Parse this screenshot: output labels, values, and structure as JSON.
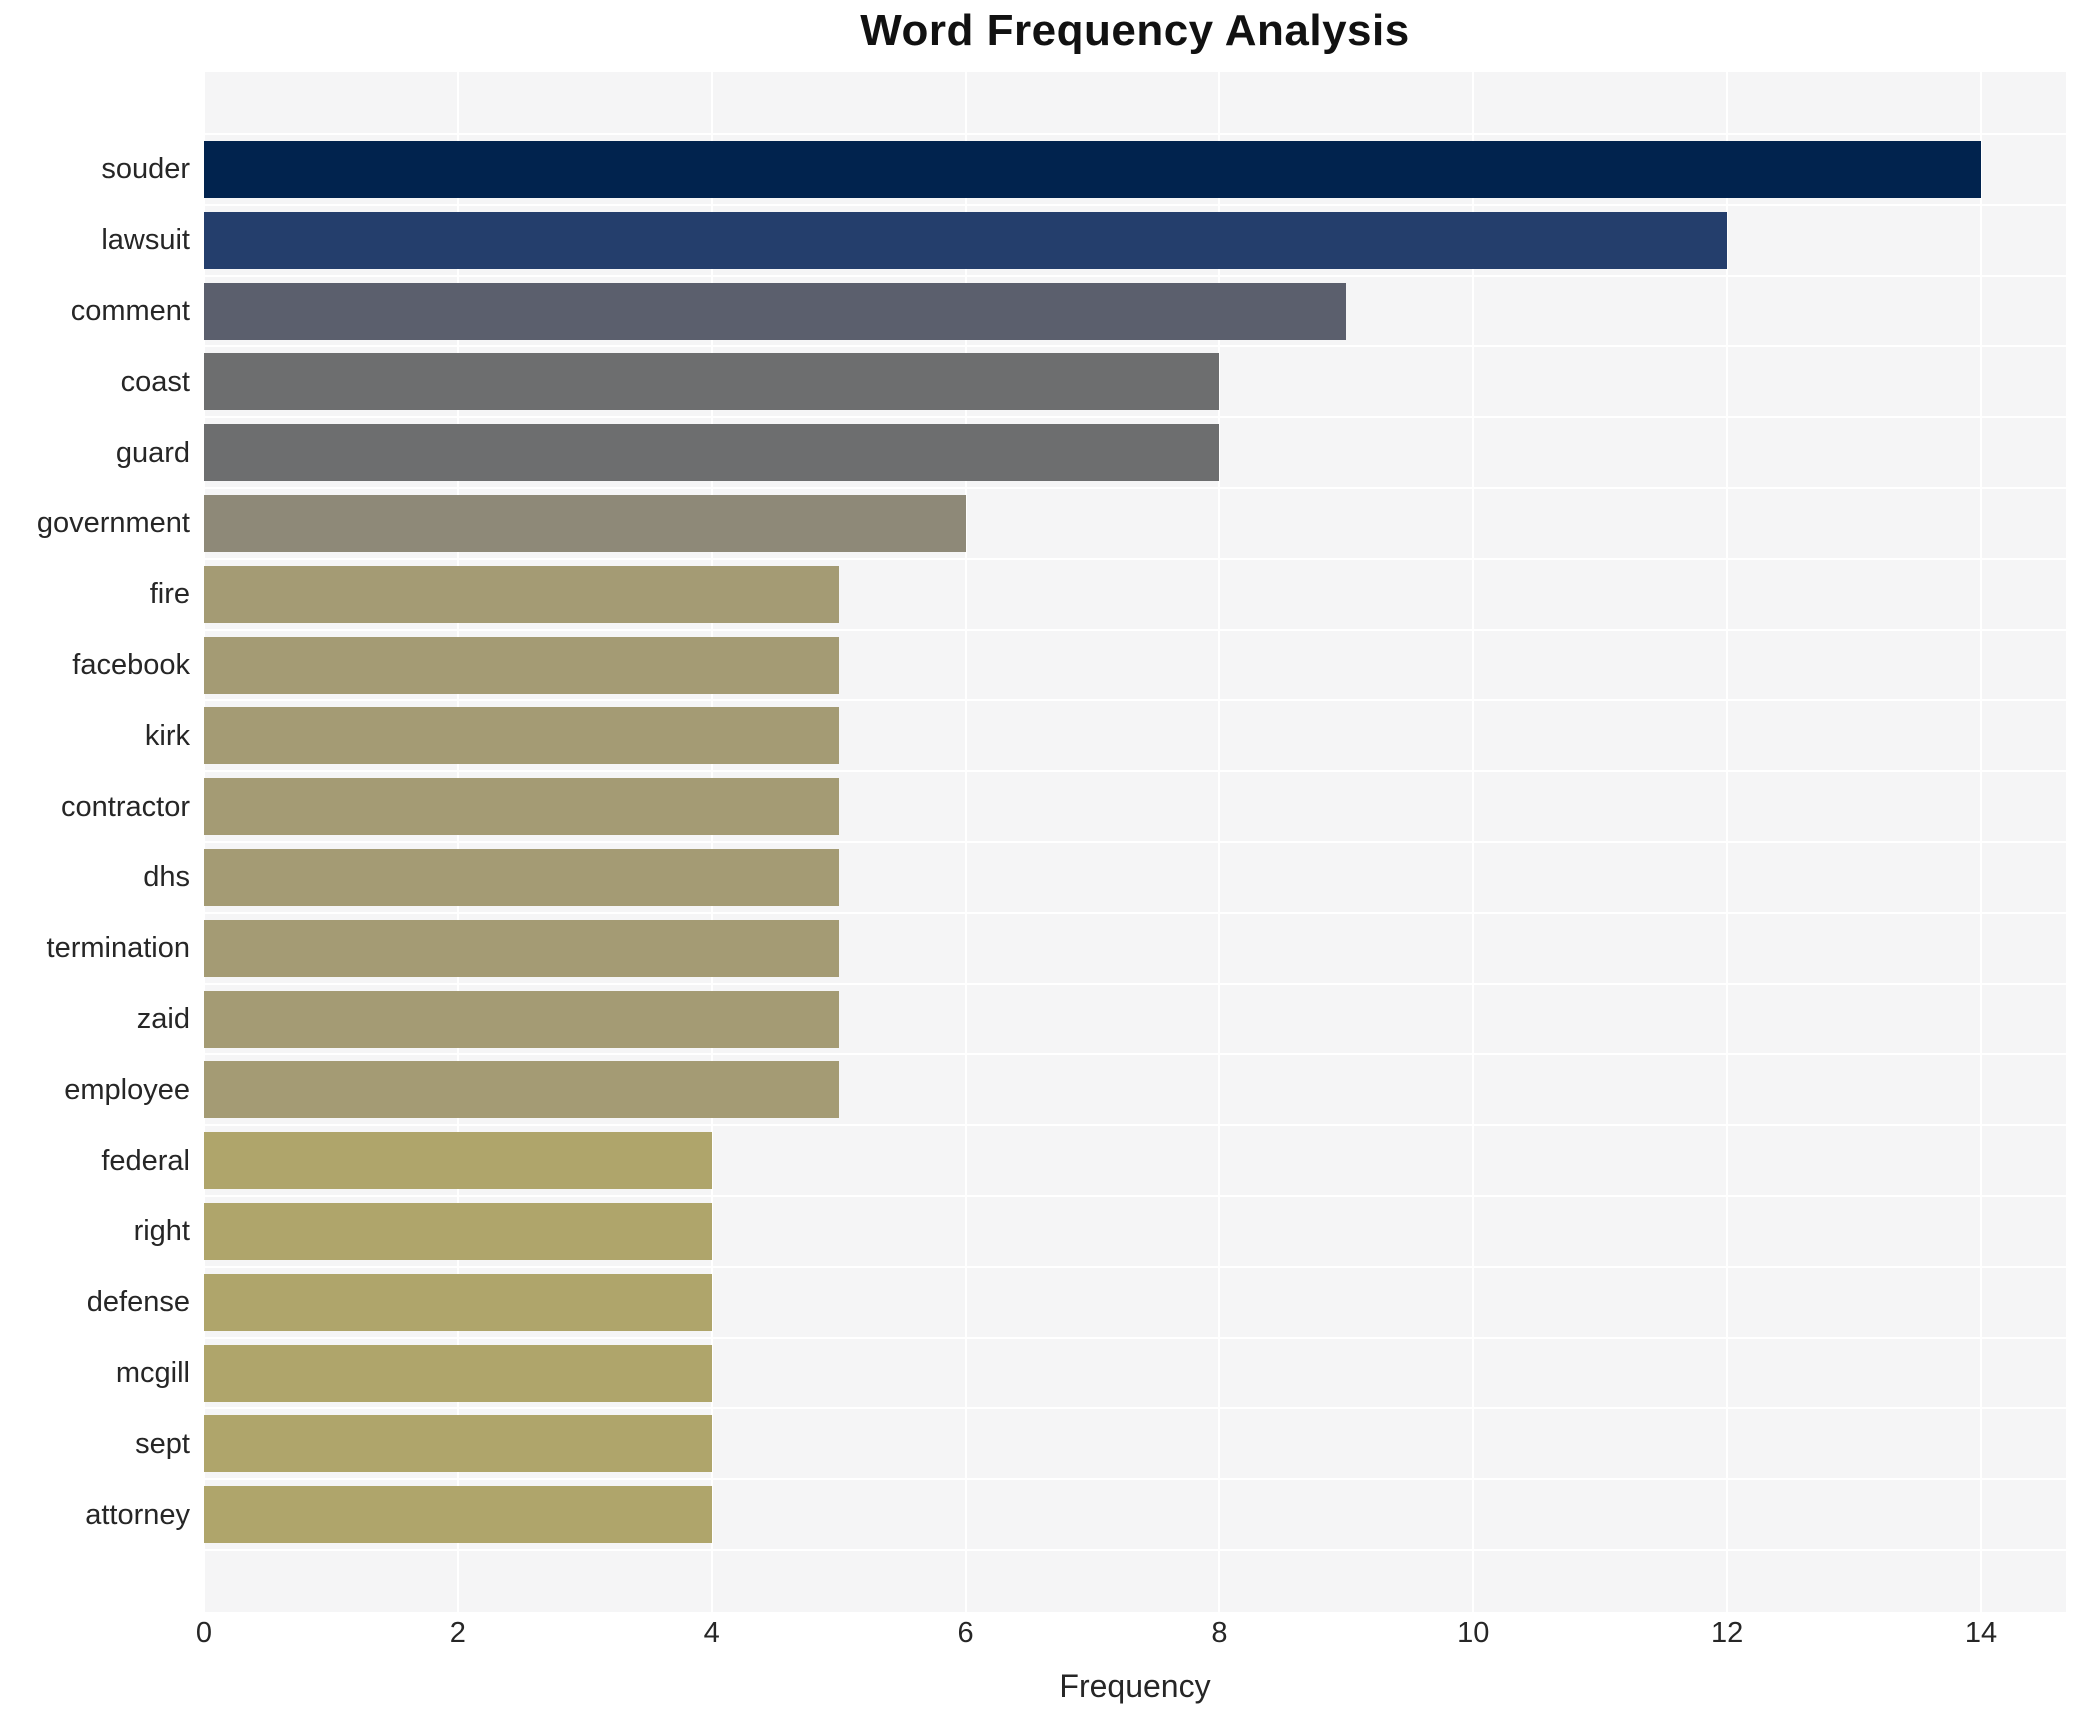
{
  "chart_data": {
    "type": "bar",
    "orientation": "horizontal",
    "title": "Word Frequency Analysis",
    "xlabel": "Frequency",
    "ylabel": "",
    "categories": [
      "souder",
      "lawsuit",
      "comment",
      "coast",
      "guard",
      "government",
      "fire",
      "facebook",
      "kirk",
      "contractor",
      "dhs",
      "termination",
      "zaid",
      "employee",
      "federal",
      "right",
      "defense",
      "mcgill",
      "sept",
      "attorney"
    ],
    "values": [
      14,
      12,
      9,
      8,
      8,
      6,
      5,
      5,
      5,
      5,
      5,
      5,
      5,
      5,
      4,
      4,
      4,
      4,
      4,
      4
    ],
    "bar_colors": [
      "#01234e",
      "#243e6c",
      "#5b5f6d",
      "#6d6e6f",
      "#6d6e6f",
      "#8e8978",
      "#a49b74",
      "#a49b74",
      "#a49b74",
      "#a49b74",
      "#a49b74",
      "#a49b74",
      "#a49b74",
      "#a49b74",
      "#afa56b",
      "#afa56b",
      "#afa56b",
      "#afa56b",
      "#afa56b",
      "#afa56b"
    ],
    "x_ticks": [
      0,
      2,
      4,
      6,
      8,
      10,
      12,
      14
    ],
    "xlim": [
      0,
      14.67
    ],
    "grid": true,
    "legend": false,
    "plot_background": "#f5f5f6",
    "grid_color": "#ffffff",
    "text_color": "#262626",
    "title_color": "#111111"
  }
}
